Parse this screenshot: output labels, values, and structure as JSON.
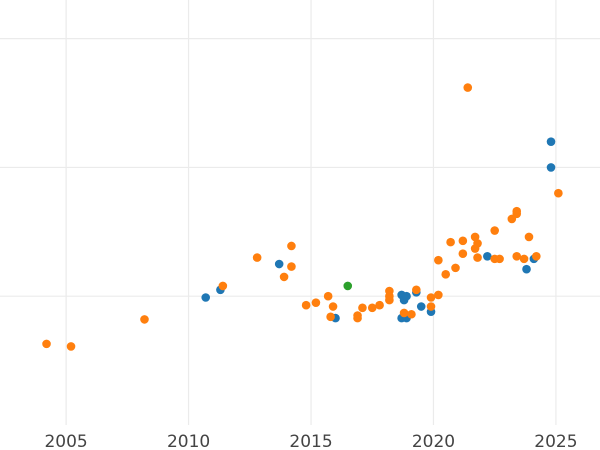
{
  "chart_data": {
    "type": "scatter",
    "title": "",
    "xlabel": "",
    "ylabel": "",
    "grid": true,
    "legend": "none",
    "xlim": [
      2002.3,
      2026.8
    ],
    "ylim": [
      0,
      3.3
    ],
    "x_ticks": [
      2005,
      2010,
      2015,
      2020,
      2025
    ],
    "x_tick_labels": [
      "2005",
      "2010",
      "2015",
      "2020",
      "2025"
    ],
    "y_gridlines": [
      1,
      2,
      3
    ],
    "series": [
      {
        "color": "#1f77b4",
        "points": [
          [
            2010.7,
            0.99
          ],
          [
            2011.3,
            1.05
          ],
          [
            2013.7,
            1.25
          ],
          [
            2016.0,
            0.83
          ],
          [
            2018.7,
            0.83
          ],
          [
            2018.7,
            1.01
          ],
          [
            2018.8,
            0.97
          ],
          [
            2018.9,
            1.0
          ],
          [
            2018.9,
            0.83
          ],
          [
            2019.3,
            1.03
          ],
          [
            2019.5,
            0.92
          ],
          [
            2019.9,
            0.88
          ],
          [
            2022.2,
            1.31
          ],
          [
            2023.8,
            1.21
          ],
          [
            2024.1,
            1.29
          ],
          [
            2024.8,
            2.0
          ],
          [
            2024.8,
            2.2
          ]
        ]
      },
      {
        "color": "#ff7f0e",
        "points": [
          [
            2004.2,
            0.63
          ],
          [
            2005.2,
            0.61
          ],
          [
            2008.2,
            0.82
          ],
          [
            2011.4,
            1.08
          ],
          [
            2012.8,
            1.3
          ],
          [
            2013.9,
            1.15
          ],
          [
            2014.2,
            1.23
          ],
          [
            2014.2,
            1.39
          ],
          [
            2014.8,
            0.93
          ],
          [
            2015.2,
            0.95
          ],
          [
            2015.7,
            1.0
          ],
          [
            2015.8,
            0.84
          ],
          [
            2015.9,
            0.92
          ],
          [
            2016.9,
            0.85
          ],
          [
            2016.9,
            0.83
          ],
          [
            2017.1,
            0.91
          ],
          [
            2017.5,
            0.91
          ],
          [
            2017.8,
            0.93
          ],
          [
            2018.2,
            1.04
          ],
          [
            2018.2,
            1.0
          ],
          [
            2018.2,
            0.97
          ],
          [
            2018.8,
            0.87
          ],
          [
            2019.1,
            0.86
          ],
          [
            2019.3,
            1.05
          ],
          [
            2019.9,
            0.92
          ],
          [
            2019.9,
            0.99
          ],
          [
            2020.2,
            1.01
          ],
          [
            2020.2,
            1.28
          ],
          [
            2020.5,
            1.17
          ],
          [
            2020.7,
            1.42
          ],
          [
            2020.9,
            1.22
          ],
          [
            2021.2,
            1.43
          ],
          [
            2021.2,
            1.33
          ],
          [
            2021.4,
            2.62
          ],
          [
            2021.7,
            1.37
          ],
          [
            2021.7,
            1.46
          ],
          [
            2021.8,
            1.3
          ],
          [
            2021.8,
            1.41
          ],
          [
            2022.5,
            1.51
          ],
          [
            2022.5,
            1.29
          ],
          [
            2022.7,
            1.29
          ],
          [
            2023.2,
            1.6
          ],
          [
            2023.4,
            1.66
          ],
          [
            2023.4,
            1.64
          ],
          [
            2023.4,
            1.31
          ],
          [
            2023.7,
            1.29
          ],
          [
            2023.9,
            1.46
          ],
          [
            2024.2,
            1.31
          ],
          [
            2025.1,
            1.8
          ]
        ]
      },
      {
        "color": "#2ca02c",
        "points": [
          [
            2016.5,
            1.08
          ]
        ]
      }
    ]
  }
}
